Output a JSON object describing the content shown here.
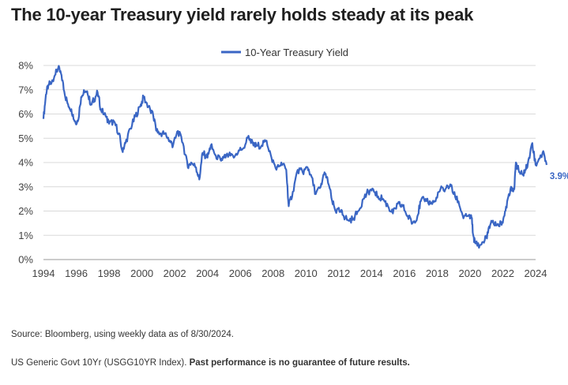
{
  "title": "The 10-year Treasury yield rarely holds steady at its peak",
  "source": "Source: Bloomberg, using weekly data as of 8/30/2024.",
  "note_prefix": "US Generic Govt 10Yr (USGG10YR Index). ",
  "note_bold": "Past performance is no guarantee of future results.",
  "chart_data": {
    "type": "line",
    "legend": "10-Year Treasury Yield",
    "legend_position": "top-center",
    "end_label": "3.9%",
    "color": "#3a66c4",
    "grid": true,
    "xlim": [
      1994,
      2024
    ],
    "ylim": [
      0,
      8
    ],
    "x_ticks": [
      "1994",
      "1996",
      "1998",
      "2000",
      "2002",
      "2004",
      "2006",
      "2008",
      "2010",
      "2012",
      "2014",
      "2016",
      "2018",
      "2020",
      "2022",
      "2024"
    ],
    "y_ticks": [
      "0%",
      "1%",
      "2%",
      "3%",
      "4%",
      "5%",
      "6%",
      "7%",
      "8%"
    ],
    "series": [
      {
        "x": [
          1994.0,
          1994.15,
          1994.3,
          1994.5,
          1994.7,
          1994.9,
          1995.1,
          1995.3,
          1995.5,
          1995.7,
          1995.9,
          1996.1,
          1996.3,
          1996.5,
          1996.7,
          1996.9,
          1997.1,
          1997.3,
          1997.5,
          1997.8,
          1998.0,
          1998.3,
          1998.6,
          1998.8,
          1999.0,
          1999.3,
          1999.6,
          1999.9,
          2000.1,
          2000.4,
          2000.7,
          2000.9,
          2001.1,
          2001.4,
          2001.7,
          2001.9,
          2002.2,
          2002.5,
          2002.8,
          2003.0,
          2003.3,
          2003.5,
          2003.7,
          2004.0,
          2004.2,
          2004.5,
          2004.8,
          2005.0,
          2005.3,
          2005.6,
          2005.9,
          2006.2,
          2006.5,
          2006.8,
          2007.0,
          2007.3,
          2007.6,
          2007.9,
          2008.2,
          2008.5,
          2008.8,
          2008.95,
          2009.2,
          2009.5,
          2009.8,
          2010.1,
          2010.3,
          2010.6,
          2010.9,
          2011.1,
          2011.3,
          2011.6,
          2011.8,
          2012.1,
          2012.3,
          2012.6,
          2012.9,
          2013.2,
          2013.5,
          2013.8,
          2014.1,
          2014.4,
          2014.7,
          2015.0,
          2015.3,
          2015.6,
          2015.9,
          2016.2,
          2016.5,
          2016.8,
          2017.0,
          2017.3,
          2017.6,
          2017.9,
          2018.2,
          2018.5,
          2018.8,
          2019.0,
          2019.3,
          2019.6,
          2019.9,
          2020.1,
          2020.2,
          2020.3,
          2020.6,
          2020.9,
          2021.1,
          2021.3,
          2021.6,
          2021.9,
          2022.1,
          2022.3,
          2022.5,
          2022.7,
          2022.8,
          2023.0,
          2023.2,
          2023.4,
          2023.6,
          2023.8,
          2024.0,
          2024.3,
          2024.5,
          2024.67
        ],
        "y": [
          5.8,
          6.8,
          7.2,
          7.3,
          7.6,
          7.9,
          7.6,
          6.8,
          6.4,
          6.2,
          5.7,
          5.7,
          6.7,
          6.9,
          6.8,
          6.4,
          6.6,
          6.9,
          6.2,
          5.9,
          5.6,
          5.7,
          5.2,
          4.5,
          4.8,
          5.4,
          5.9,
          6.3,
          6.7,
          6.3,
          5.9,
          5.3,
          5.2,
          5.2,
          4.9,
          4.7,
          5.3,
          4.8,
          3.8,
          4.0,
          3.8,
          3.3,
          4.4,
          4.2,
          4.7,
          4.3,
          4.1,
          4.2,
          4.3,
          4.2,
          4.5,
          4.6,
          5.1,
          4.7,
          4.7,
          4.7,
          4.9,
          4.2,
          3.7,
          4.0,
          3.7,
          2.2,
          2.8,
          3.7,
          3.6,
          3.8,
          3.5,
          2.7,
          3.0,
          3.5,
          3.4,
          2.4,
          2.0,
          2.0,
          1.8,
          1.6,
          1.7,
          2.0,
          2.5,
          2.8,
          2.9,
          2.6,
          2.5,
          2.2,
          1.9,
          2.3,
          2.2,
          1.8,
          1.5,
          1.8,
          2.4,
          2.5,
          2.3,
          2.4,
          2.9,
          2.9,
          3.1,
          2.7,
          2.4,
          1.7,
          1.8,
          1.7,
          1.0,
          0.7,
          0.6,
          0.8,
          1.1,
          1.6,
          1.4,
          1.5,
          1.8,
          2.5,
          3.0,
          2.9,
          4.0,
          3.6,
          3.5,
          3.7,
          4.2,
          4.8,
          3.9,
          4.3,
          4.4,
          3.9
        ]
      }
    ]
  }
}
